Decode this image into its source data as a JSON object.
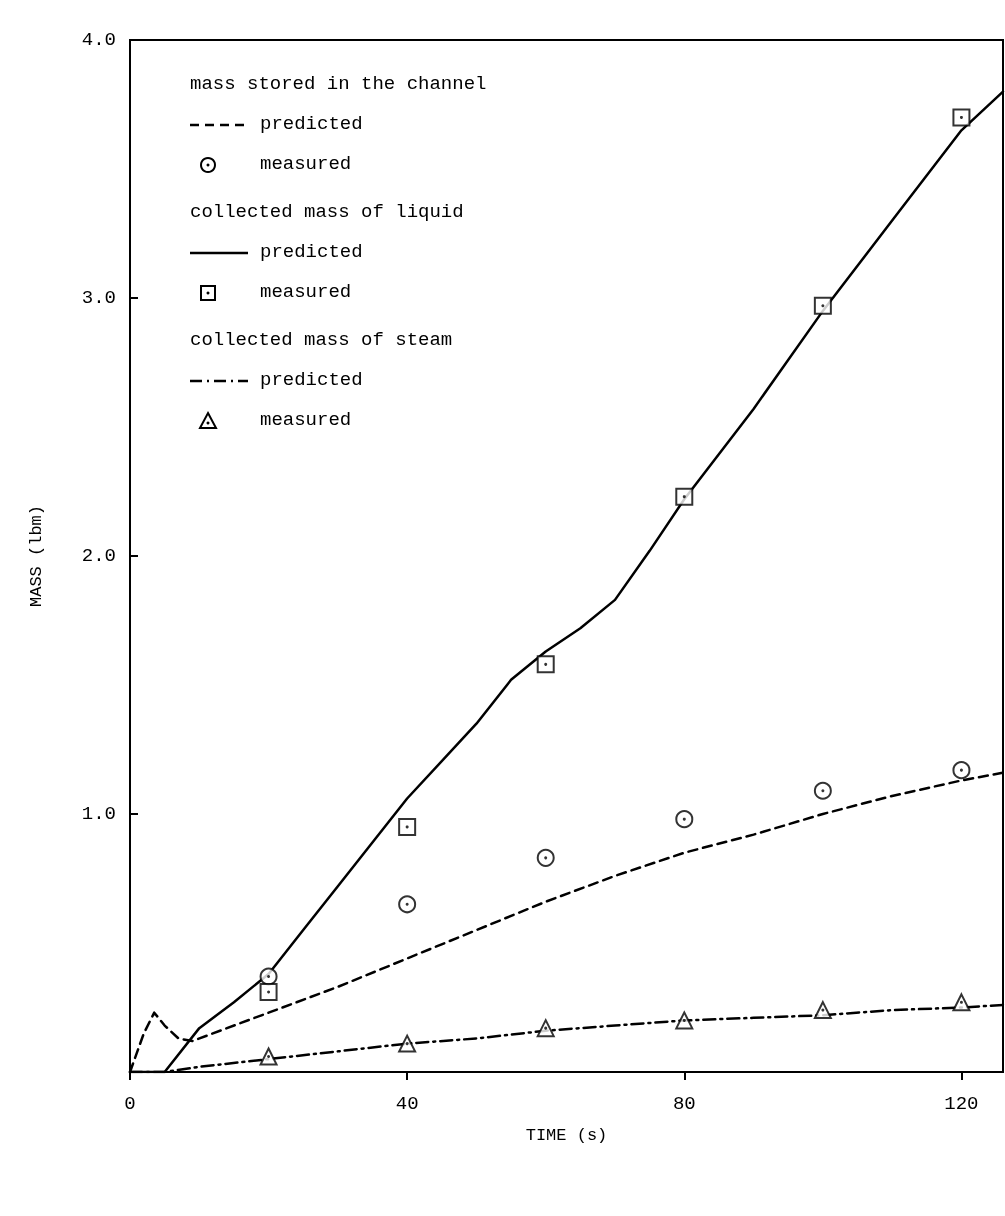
{
  "chart_data": {
    "type": "line",
    "xlabel": "TIME (s)",
    "ylabel": "MASS (lbm)",
    "x": [
      20,
      40,
      60,
      80,
      100,
      120
    ],
    "xlim": [
      0,
      126
    ],
    "xticks": [
      0,
      40,
      80,
      120
    ],
    "ylim": [
      0,
      4
    ],
    "yticks": [
      {
        "value": 0,
        "label": null
      },
      {
        "value": 1,
        "label": "1.0"
      },
      {
        "value": 2,
        "label": "2.0"
      },
      {
        "value": 3,
        "label": "3.0"
      },
      {
        "value": 4,
        "label": "4.0"
      }
    ],
    "grid": false,
    "legend": "top left",
    "annotations": [
      "mass stored in the channel",
      "collected mass of liquid",
      "collected mass of steam"
    ],
    "series": [
      {
        "name": "predicted",
        "color": "#000000",
        "line_style": "dashed",
        "marker": "none",
        "x": [
          0,
          2,
          3.5,
          5,
          7,
          9,
          20,
          30,
          40,
          50,
          60,
          70,
          80,
          90,
          100,
          110,
          120,
          126
        ],
        "values": [
          0,
          0.15,
          0.23,
          0.18,
          0.13,
          0.12,
          0.23,
          0.33,
          0.44,
          0.55,
          0.66,
          0.76,
          0.85,
          0.92,
          1.0,
          1.07,
          1.13,
          1.16
        ]
      },
      {
        "name": "measured",
        "type": "scatter",
        "color": "#000000",
        "marker": "circle",
        "values": [
          0.37,
          0.65,
          0.83,
          0.98,
          1.09,
          1.17
        ]
      },
      {
        "name": "predicted",
        "color": "#000000",
        "line_style": "solid",
        "marker": "none",
        "x": [
          0,
          5,
          10,
          15,
          20,
          25,
          30,
          40,
          50,
          55,
          60,
          65,
          70,
          75,
          80,
          90,
          100,
          110,
          120,
          126
        ],
        "values": [
          0,
          0,
          0.17,
          0.27,
          0.38,
          0.55,
          0.72,
          1.06,
          1.35,
          1.52,
          1.63,
          1.72,
          1.83,
          2.02,
          2.22,
          2.57,
          2.95,
          3.3,
          3.65,
          3.8
        ]
      },
      {
        "name": "measured",
        "type": "scatter",
        "color": "#000000",
        "marker": "square",
        "values": [
          0.31,
          0.95,
          1.58,
          2.23,
          2.97,
          3.7
        ]
      },
      {
        "name": "predicted",
        "color": "#000000",
        "line_style": "dashdot",
        "marker": "none",
        "x": [
          0,
          5,
          10,
          20,
          30,
          40,
          50,
          60,
          70,
          80,
          90,
          100,
          110,
          120,
          126
        ],
        "values": [
          0,
          0,
          0.02,
          0.05,
          0.08,
          0.11,
          0.13,
          0.16,
          0.18,
          0.2,
          0.21,
          0.22,
          0.24,
          0.25,
          0.26
        ]
      },
      {
        "name": "measured",
        "type": "scatter",
        "color": "#000000",
        "marker": "triangle",
        "values": [
          0.06,
          0.11,
          0.17,
          0.2,
          0.24,
          0.27
        ]
      }
    ]
  }
}
